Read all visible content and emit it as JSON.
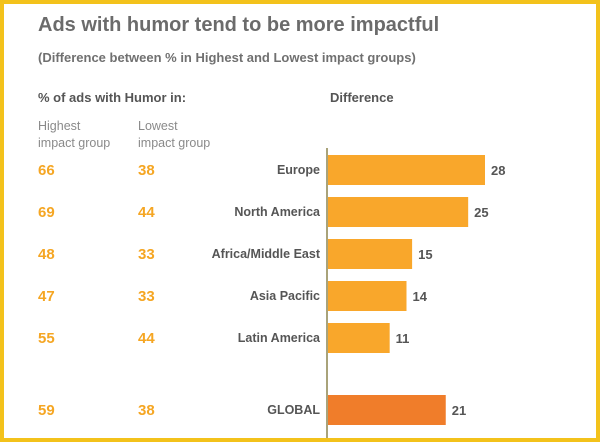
{
  "header": {
    "title": "Ads with humor tend to be more impactful",
    "subtitle": "(Difference between % in Highest and Lowest impact groups)"
  },
  "table_heads": {
    "section": "% of ads with Humor in:",
    "difference": "Difference",
    "highest": "Highest\nimpact group",
    "lowest": "Lowest\nimpact group"
  },
  "colors": {
    "bar": "#f9a72b",
    "bar_global": "#f07d2a",
    "number": "#f5a623",
    "axis": "#a9a37a"
  },
  "chart_data": {
    "type": "bar",
    "orientation": "horizontal",
    "title": "Ads with humor tend to be more impactful",
    "subtitle": "(Difference between % in Highest and Lowest impact groups)",
    "categories": [
      "Europe",
      "North America",
      "Africa/Middle East",
      "Asia Pacific",
      "Latin America",
      "GLOBAL"
    ],
    "highest": [
      66,
      69,
      48,
      47,
      55,
      59
    ],
    "lowest": [
      38,
      44,
      33,
      33,
      44,
      38
    ],
    "values": [
      28,
      25,
      15,
      14,
      11,
      21
    ],
    "xlim": [
      0,
      30
    ],
    "grid": false
  }
}
